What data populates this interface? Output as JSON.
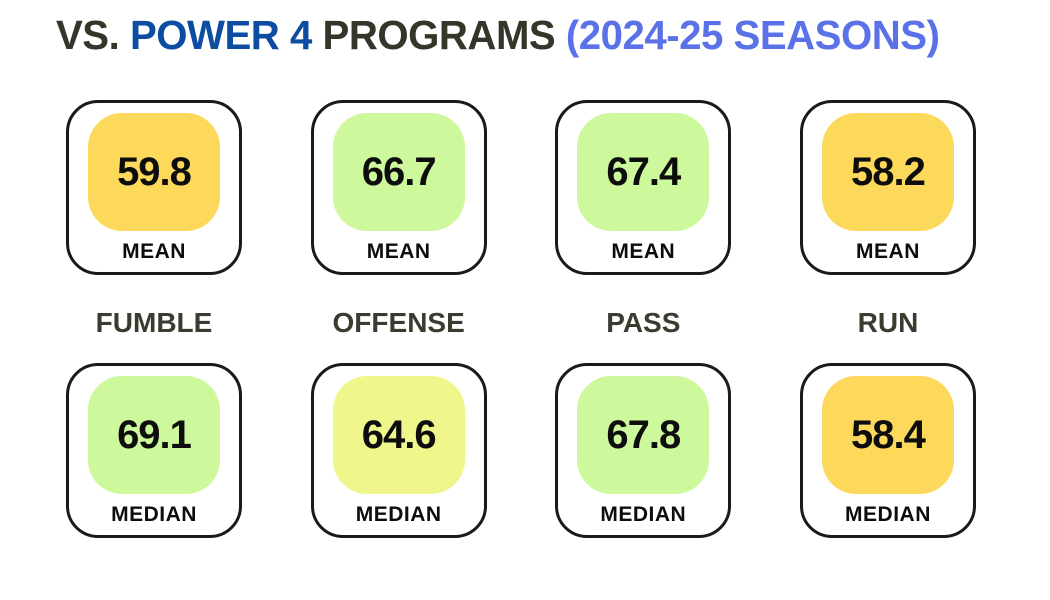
{
  "title": {
    "part_vs": "VS. ",
    "part_power4": "POWER 4",
    "part_programs": " PROGRAMS ",
    "part_seasons": "(2024-25 SEASONS)"
  },
  "colors": {
    "title_dark": "#343629",
    "title_blue": "#0C4DA2",
    "title_periwinkle": "#5B71E8",
    "category_text": "#3A3C30",
    "card_border": "#1a1a1a",
    "gold": "#FCD95B",
    "green": "#CDF89B",
    "yellow_green": "#EFF78C"
  },
  "categories": [
    "FUMBLE",
    "OFFENSE",
    "PASS",
    "RUN"
  ],
  "mean_row": [
    {
      "value": "59.8",
      "label": "MEAN",
      "color": "#FCD95B"
    },
    {
      "value": "66.7",
      "label": "MEAN",
      "color": "#CDF89B"
    },
    {
      "value": "67.4",
      "label": "MEAN",
      "color": "#CDF89B"
    },
    {
      "value": "58.2",
      "label": "MEAN",
      "color": "#FCD95B"
    }
  ],
  "median_row": [
    {
      "value": "69.1",
      "label": "MEDIAN",
      "color": "#CDF89B"
    },
    {
      "value": "64.6",
      "label": "MEDIAN",
      "color": "#EFF78C"
    },
    {
      "value": "67.8",
      "label": "MEDIAN",
      "color": "#CDF89B"
    },
    {
      "value": "58.4",
      "label": "MEDIAN",
      "color": "#FCD95B"
    }
  ],
  "chart_data": {
    "type": "table",
    "title": "VS. POWER 4 PROGRAMS (2024-25 SEASONS)",
    "categories": [
      "FUMBLE",
      "OFFENSE",
      "PASS",
      "RUN"
    ],
    "series": [
      {
        "name": "MEAN",
        "values": [
          59.8,
          66.7,
          67.4,
          58.2
        ]
      },
      {
        "name": "MEDIAN",
        "values": [
          69.1,
          64.6,
          67.8,
          58.4
        ]
      }
    ],
    "legend_position": "none",
    "color_coding": "gold tile = lower score (~58-60), yellow-green tile = mid (~64.6), light-green tile = higher score (~66-69)"
  }
}
